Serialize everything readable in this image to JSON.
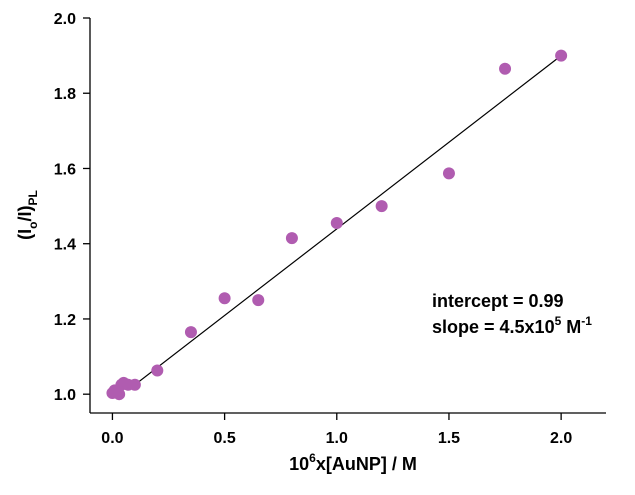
{
  "chart_data": {
    "type": "scatter",
    "xlabel": {
      "prefix": "10",
      "sup": "6",
      "rest": "x[AuNP] / M"
    },
    "ylabel": {
      "main": "(I",
      "sub1": "o",
      "mid": "/I)",
      "sub2": "PL"
    },
    "xlim": [
      -0.1,
      2.2
    ],
    "ylim": [
      0.95,
      2.0
    ],
    "xticks": [
      0.0,
      0.5,
      1.0,
      1.5,
      2.0
    ],
    "xtick_labels": [
      "0.0",
      "0.5",
      "1.0",
      "1.5",
      "2.0"
    ],
    "yticks": [
      1.0,
      1.2,
      1.4,
      1.6,
      1.8,
      2.0
    ],
    "ytick_labels": [
      "1.0",
      "1.2",
      "1.4",
      "1.6",
      "1.8",
      "2.0"
    ],
    "grid": false,
    "marker_color": "#b05cb0",
    "line_color": "#000000",
    "points": [
      {
        "x": 0.0,
        "y": 1.003
      },
      {
        "x": 0.01,
        "y": 1.01
      },
      {
        "x": 0.03,
        "y": 1.0
      },
      {
        "x": 0.04,
        "y": 1.025
      },
      {
        "x": 0.05,
        "y": 1.03
      },
      {
        "x": 0.07,
        "y": 1.025
      },
      {
        "x": 0.1,
        "y": 1.025
      },
      {
        "x": 0.2,
        "y": 1.063
      },
      {
        "x": 0.35,
        "y": 1.165
      },
      {
        "x": 0.5,
        "y": 1.255
      },
      {
        "x": 0.65,
        "y": 1.25
      },
      {
        "x": 0.8,
        "y": 1.415
      },
      {
        "x": 1.0,
        "y": 1.455
      },
      {
        "x": 1.2,
        "y": 1.5
      },
      {
        "x": 1.5,
        "y": 1.587
      },
      {
        "x": 1.75,
        "y": 1.865
      },
      {
        "x": 2.0,
        "y": 1.9
      }
    ],
    "fit_line": {
      "x": [
        0.1,
        2.0
      ],
      "y": [
        1.025,
        1.9
      ]
    },
    "annotations": {
      "intercept_text": "intercept = 0.99",
      "slope_prefix": "slope = 4.5x10",
      "slope_sup": "5",
      "slope_unit": " M",
      "slope_unit_sup": "-1"
    }
  }
}
